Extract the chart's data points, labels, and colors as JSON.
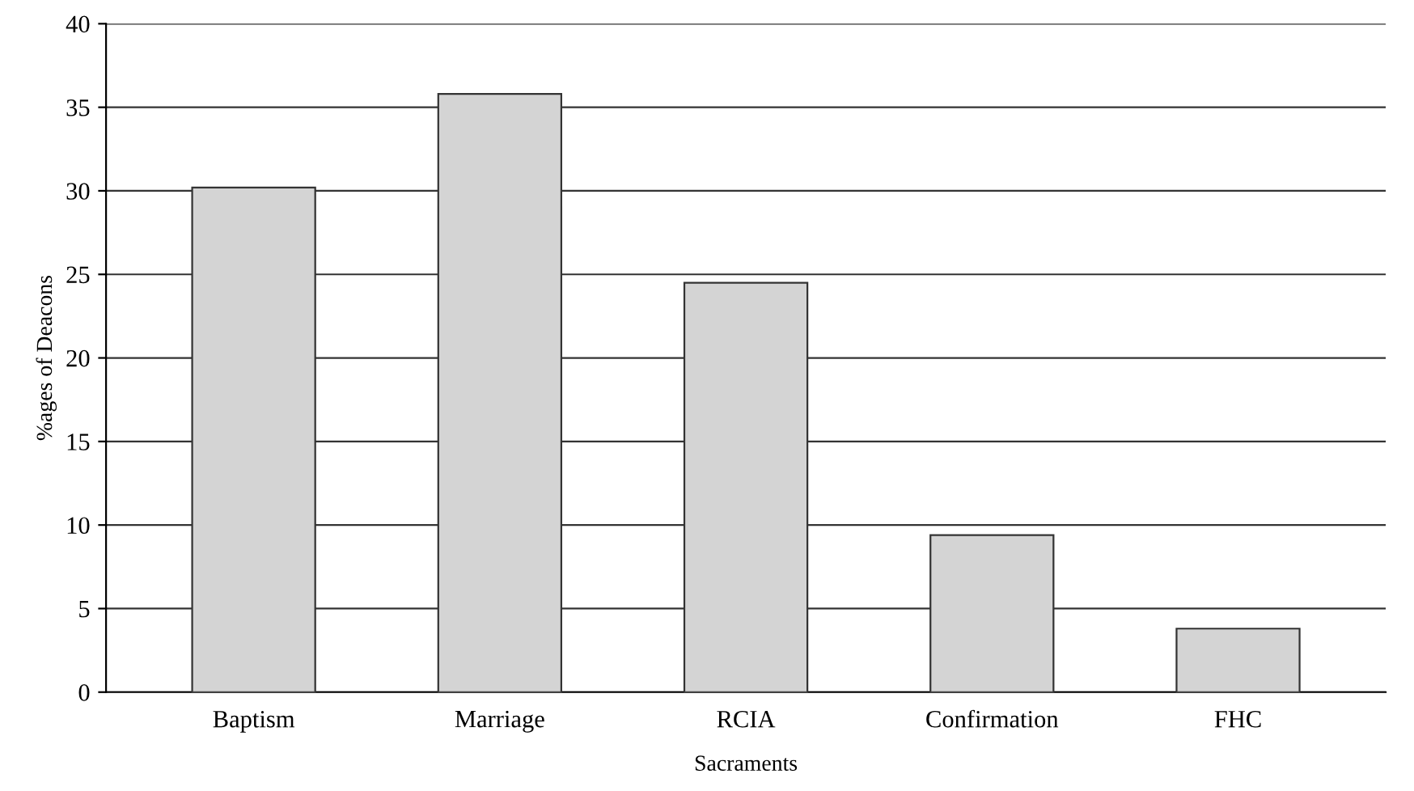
{
  "chart_data": {
    "type": "bar",
    "xlabel": "Sacraments",
    "ylabel": "%ages of Deacons",
    "categories": [
      "Baptism",
      "Marriage",
      "RCIA",
      "Confirmation",
      "FHC"
    ],
    "values": [
      30.2,
      35.8,
      24.5,
      9.4,
      3.8
    ],
    "color": "#d4d4d4",
    "ylim": [
      0,
      40
    ],
    "yticks": [
      0,
      5,
      10,
      15,
      20,
      25,
      30,
      35,
      40
    ],
    "grid": "y"
  }
}
